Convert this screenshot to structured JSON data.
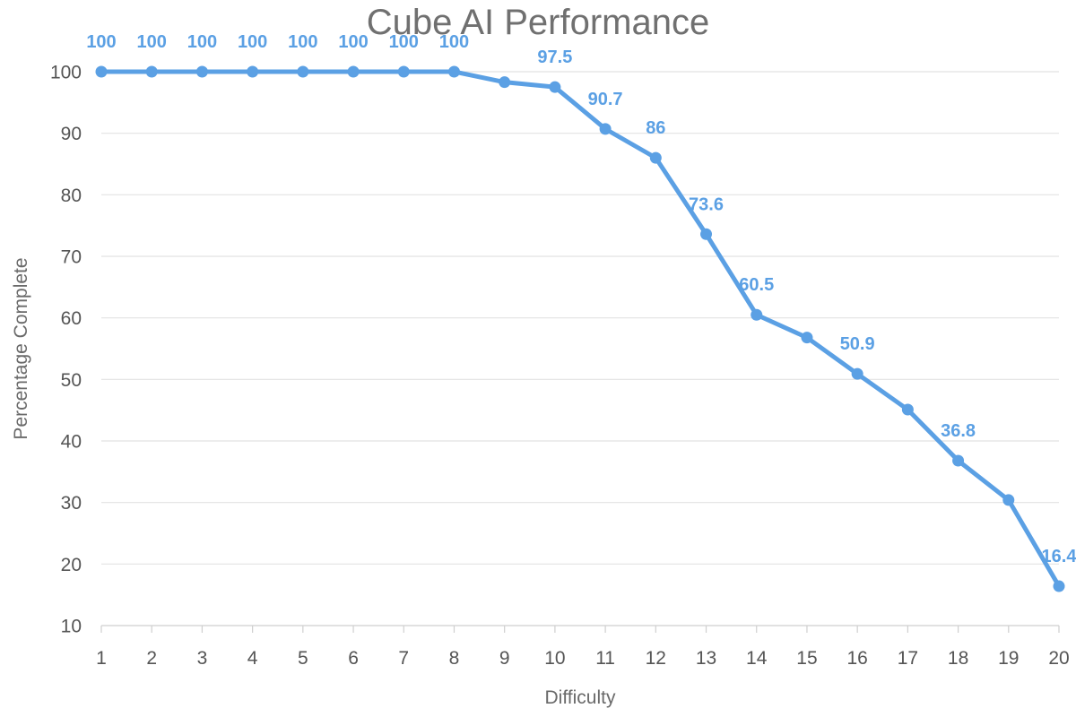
{
  "chart_data": {
    "type": "line",
    "title": "Cube AI Performance",
    "xlabel": "Difficulty",
    "ylabel": "Percentage Complete",
    "x": [
      1,
      2,
      3,
      4,
      5,
      6,
      7,
      8,
      9,
      10,
      11,
      12,
      13,
      14,
      15,
      16,
      17,
      18,
      19,
      20
    ],
    "series": [
      {
        "name": "Percentage Complete",
        "values": [
          100,
          100,
          100,
          100,
          100,
          100,
          100,
          100,
          98.3,
          97.5,
          90.7,
          86,
          73.6,
          60.5,
          56.8,
          50.9,
          45.1,
          36.8,
          30.4,
          16.4
        ],
        "color": "#5ba0e4"
      }
    ],
    "data_labels": [
      {
        "index": 0,
        "text": "100"
      },
      {
        "index": 1,
        "text": "100"
      },
      {
        "index": 2,
        "text": "100"
      },
      {
        "index": 3,
        "text": "100"
      },
      {
        "index": 4,
        "text": "100"
      },
      {
        "index": 5,
        "text": "100"
      },
      {
        "index": 6,
        "text": "100"
      },
      {
        "index": 7,
        "text": "100"
      },
      {
        "index": 9,
        "text": "97.5"
      },
      {
        "index": 10,
        "text": "90.7"
      },
      {
        "index": 11,
        "text": "86"
      },
      {
        "index": 12,
        "text": "73.6"
      },
      {
        "index": 13,
        "text": "60.5"
      },
      {
        "index": 15,
        "text": "50.9"
      },
      {
        "index": 17,
        "text": "36.8"
      },
      {
        "index": 19,
        "text": "16.4"
      }
    ],
    "yticks": [
      10,
      20,
      30,
      40,
      50,
      60,
      70,
      80,
      90,
      100
    ],
    "ylim": [
      10,
      100
    ],
    "xlim": [
      1,
      20
    ],
    "grid": true,
    "legend": "none"
  },
  "colors": {
    "series": "#5ba0e4",
    "text": "#555555",
    "title": "#707070",
    "grid": "#e2e2e2"
  }
}
